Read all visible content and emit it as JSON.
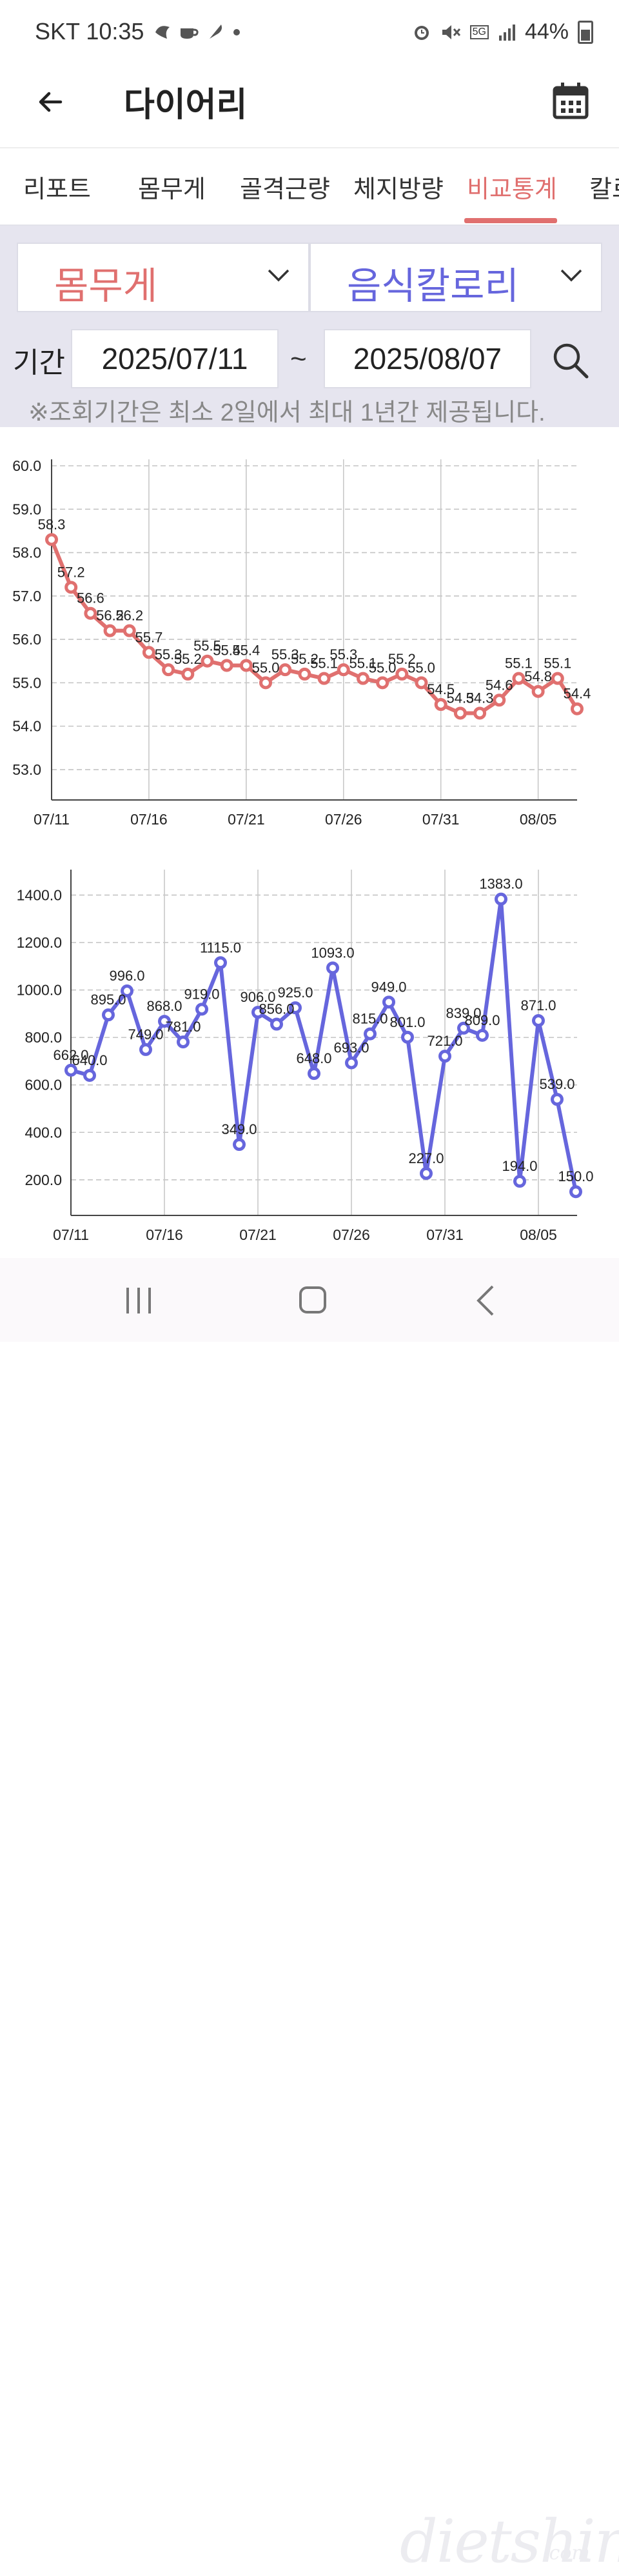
{
  "status_bar": {
    "carrier_time": "SKT 10:35",
    "battery": "44%",
    "network": "5G",
    "icons": [
      "notification-icon",
      "coffee-icon",
      "feather-icon",
      "dot-icon",
      "alarm-icon",
      "mute-icon",
      "5g-icon",
      "signal-icon",
      "battery-icon"
    ]
  },
  "app_bar": {
    "title": "다이어리"
  },
  "tabs": [
    {
      "label": "리포트"
    },
    {
      "label": "몸무게"
    },
    {
      "label": "골격근량"
    },
    {
      "label": "체지방량"
    },
    {
      "label": "비교통계"
    },
    {
      "label": "칼로"
    }
  ],
  "active_tab": "비교통계",
  "filters": {
    "left_select": "몸무게",
    "right_select": "음식칼로리",
    "period_label": "기간",
    "date_from": "2025/07/11",
    "date_separator": "~",
    "date_to": "2025/08/07",
    "notice": "※조회기간은 최소 2일에서 최대 1년간 제공됩니다."
  },
  "colors": {
    "accent_red": "#e0706f",
    "accent_blue": "#6666dd",
    "panel_bg": "#e6e5ef"
  },
  "chart_data": [
    {
      "type": "line",
      "series": [
        {
          "name": "몸무게",
          "color": "#e0706f",
          "values": [
            58.3,
            57.2,
            56.6,
            56.2,
            56.2,
            55.7,
            55.3,
            55.2,
            55.5,
            55.4,
            55.4,
            55.0,
            55.3,
            55.2,
            55.1,
            55.3,
            55.1,
            55.0,
            55.2,
            55.0,
            54.5,
            54.3,
            54.3,
            54.6,
            55.1,
            54.8,
            55.1,
            54.4
          ],
          "labels": [
            "58.3",
            "57.2",
            "56.6",
            "56.2",
            "56.2",
            "55.7",
            "55.3",
            "55.2",
            "55.5",
            "55.4",
            "55.4",
            "55.0",
            "55.3",
            "55.2",
            "55.1",
            "55.3",
            "55.1",
            "55.0",
            "55.2",
            "55.0",
            "54.5",
            "54.3",
            "54.3",
            "54.6",
            "55.1",
            "54.8",
            "55.1",
            "54.4"
          ]
        }
      ],
      "x_tick_labels": [
        "07/11",
        "07/16",
        "07/21",
        "07/26",
        "07/31",
        "08/05"
      ],
      "y_ticks": [
        "53.0",
        "54.0",
        "55.0",
        "56.0",
        "57.0",
        "58.0",
        "59.0",
        "60.0"
      ],
      "ylim": [
        52.3,
        60.0
      ],
      "grid": true
    },
    {
      "type": "line",
      "series": [
        {
          "name": "음식칼로리",
          "color": "#6666dd",
          "values": [
            662,
            640,
            895,
            996,
            749,
            868,
            781,
            919,
            1115,
            349,
            906,
            856,
            925,
            648,
            1093,
            693,
            815,
            949,
            801,
            227,
            721,
            839,
            809,
            1383,
            194,
            871,
            539,
            150
          ],
          "labels": [
            "662.0",
            "640.0",
            "895.0",
            "996.0",
            "749.0",
            "868.0",
            "781.0",
            "919.0",
            "1115.0",
            "349.0",
            "906.0",
            "856.0",
            "925.0",
            "648.0",
            "1093.0",
            "693.0",
            "815.0",
            "949.0",
            "801.0",
            "227.0",
            "721.0",
            "839.0",
            "809.0",
            "1383.0",
            "194.0",
            "871.0",
            "539.0",
            "150.0"
          ]
        }
      ],
      "x_tick_labels": [
        "07/11",
        "07/16",
        "07/21",
        "07/26",
        "07/31",
        "08/05"
      ],
      "y_ticks": [
        "200.0",
        "400.0",
        "600.0",
        "800.0",
        "1000.0",
        "1200.0",
        "1400.0"
      ],
      "ylim": [
        50,
        1480
      ],
      "grid": true
    }
  ]
}
